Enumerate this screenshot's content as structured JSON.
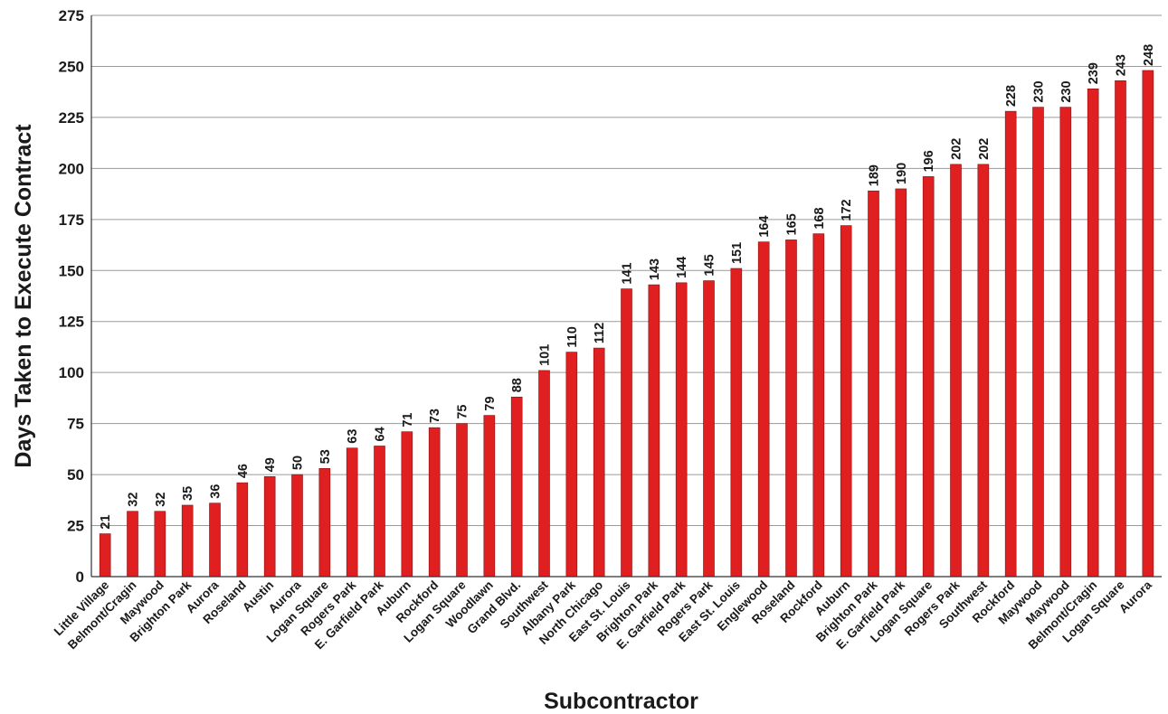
{
  "chart_data": {
    "type": "bar",
    "title": "",
    "xlabel": "Subcontractor",
    "ylabel": "Days Taken to Execute Contract",
    "ylim": [
      0,
      275
    ],
    "yticks": [
      0,
      25,
      50,
      75,
      100,
      125,
      150,
      175,
      200,
      225,
      250,
      275
    ],
    "grid": true,
    "legend": "none",
    "bar_color": "#e02020",
    "categories": [
      "Little Village",
      "Belmont/Cragin",
      "Maywood",
      "Brighton Park",
      "Aurora",
      "Roseland",
      "Austin",
      "Aurora",
      "Logan Square",
      "Rogers Park",
      "E. Garfield Park",
      "Auburn",
      "Rockford",
      "Logan Square",
      "Woodlawn",
      "Grand Blvd.",
      "Southwest",
      "Albany Park",
      "North Chicago",
      "East St. Louis",
      "Brighton Park",
      "E. Garfield Park",
      "Rogers Park",
      "East St. Louis",
      "Englewood",
      "Roseland",
      "Rockford",
      "Auburn",
      "Brighton Park",
      "E. Garfield Park",
      "Logan Square",
      "Rogers Park",
      "Southwest",
      "Rockford",
      "Maywood",
      "Maywood",
      "Belmont/Cragin",
      "Logan Square",
      "Aurora"
    ],
    "values": [
      21,
      32,
      32,
      35,
      36,
      46,
      49,
      50,
      53,
      63,
      64,
      71,
      73,
      75,
      79,
      88,
      101,
      110,
      112,
      141,
      143,
      144,
      145,
      151,
      164,
      165,
      168,
      172,
      189,
      190,
      196,
      202,
      202,
      228,
      230,
      230,
      239,
      243,
      248
    ]
  }
}
